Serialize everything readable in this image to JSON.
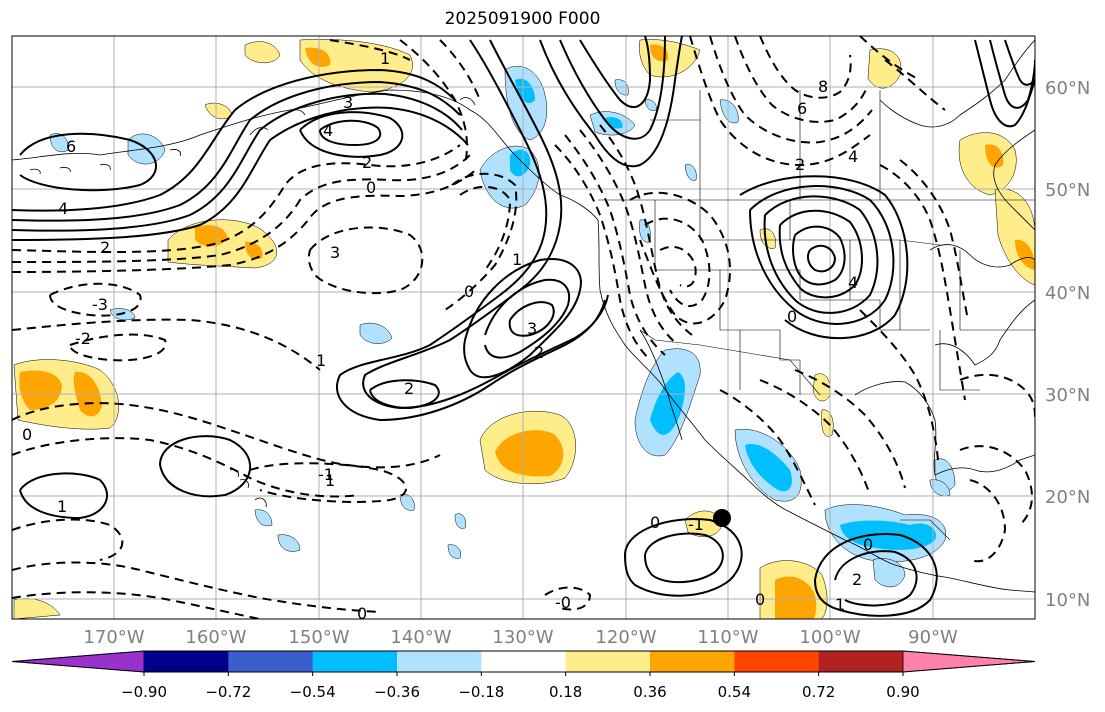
{
  "title": "2025091900 F000",
  "lat_labels": [
    "60°N",
    "50°N",
    "40°N",
    "30°N",
    "20°N",
    "10°N"
  ],
  "lon_labels": [
    "170°W",
    "160°W",
    "150°W",
    "140°W",
    "130°W",
    "120°W",
    "110°W",
    "100°W",
    "90°W"
  ],
  "colorbar": {
    "colors": [
      "#9932CC",
      "#00008B",
      "#3A5FCD",
      "#00BFFF",
      "#B0E2FF",
      "#FFFFFF",
      "#FFEC8B",
      "#FFA500",
      "#FF4500",
      "#B22222",
      "#FF82AB"
    ],
    "tick_labels": [
      "−0.90",
      "−0.72",
      "−0.54",
      "−0.36",
      "−0.18",
      "0.18",
      "0.36",
      "0.54",
      "0.72",
      "0.90"
    ]
  },
  "contour_labels": [
    "1",
    "3",
    "4",
    "6",
    "4",
    "2",
    "0",
    "3",
    "2",
    "-3",
    "-2",
    "1",
    "2",
    "2",
    "3",
    "0",
    "1",
    "0",
    "1",
    "-1",
    "1",
    "-0",
    "0",
    "8",
    "6",
    "4",
    "2",
    "4",
    "0",
    "0",
    "0",
    "2",
    "1",
    "-1",
    "0"
  ],
  "marker": "black-dot"
}
